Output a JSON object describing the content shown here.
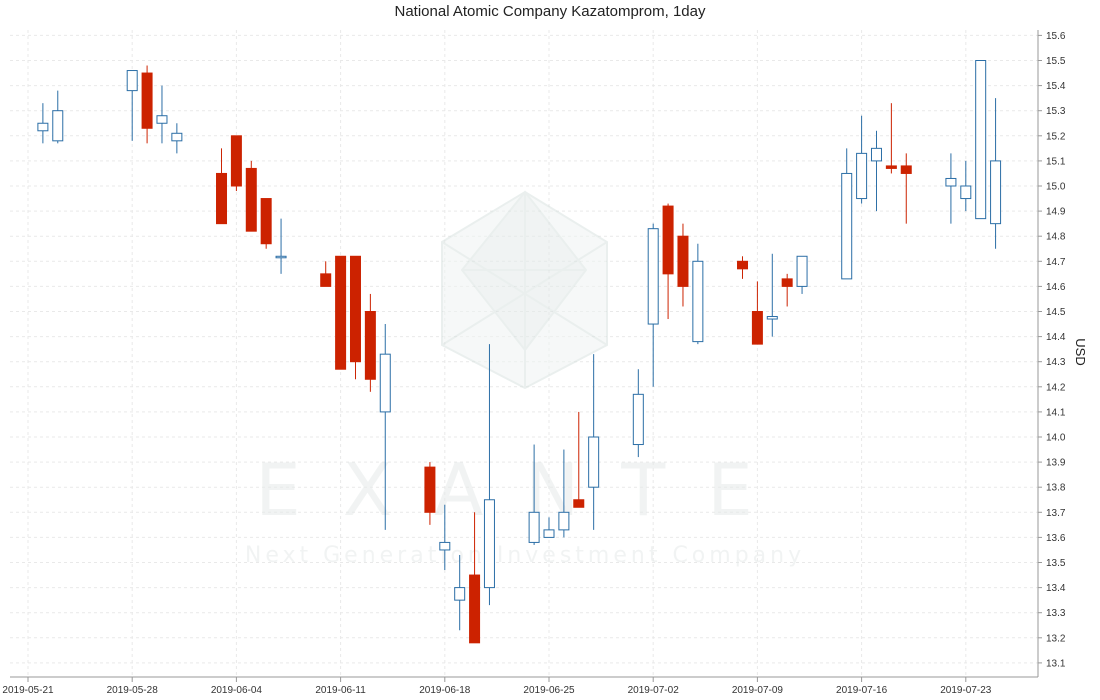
{
  "chart_data": {
    "type": "candlestick",
    "title": "National Atomic Company Kazatomprom, 1day",
    "ylabel": "USD",
    "xlabel": "",
    "ylim": [
      13.05,
      15.62
    ],
    "yticks": [
      "13.1",
      "13.2",
      "13.3",
      "13.4",
      "13.5",
      "13.6",
      "13.7",
      "13.8",
      "13.9",
      "14.0",
      "14.1",
      "14.2",
      "14.3",
      "14.4",
      "14.5",
      "14.6",
      "14.7",
      "14.8",
      "14.9",
      "15.0",
      "15.1",
      "15.2",
      "15.3",
      "15.4",
      "15.5",
      "15.6"
    ],
    "xticks": [
      "2019-05-21",
      "2019-05-28",
      "2019-06-04",
      "2019-06-11",
      "2019-06-18",
      "2019-06-25",
      "2019-07-02",
      "2019-07-09",
      "2019-07-16",
      "2019-07-23"
    ],
    "grid": true,
    "colors": {
      "up": "#2b6ea6",
      "down": "#cc2200",
      "grid": "#e9e9e9"
    },
    "watermark": {
      "logo": "pentagon-crystal-logo",
      "name": "EXANTE",
      "tagline": "Next Generation Investment Company"
    },
    "candles": [
      {
        "date": "2019-05-22",
        "open": 15.22,
        "high": 15.33,
        "low": 15.17,
        "close": 15.25
      },
      {
        "date": "2019-05-23",
        "open": 15.18,
        "high": 15.38,
        "low": 15.17,
        "close": 15.3
      },
      {
        "date": "2019-05-28",
        "open": 15.38,
        "high": 15.46,
        "low": 15.18,
        "close": 15.46
      },
      {
        "date": "2019-05-29",
        "open": 15.45,
        "high": 15.48,
        "low": 15.17,
        "close": 15.23
      },
      {
        "date": "2019-05-30",
        "open": 15.25,
        "high": 15.4,
        "low": 15.17,
        "close": 15.28
      },
      {
        "date": "2019-05-31",
        "open": 15.18,
        "high": 15.25,
        "low": 15.13,
        "close": 15.21
      },
      {
        "date": "2019-06-03",
        "open": 15.05,
        "high": 15.15,
        "low": 14.85,
        "close": 14.85
      },
      {
        "date": "2019-06-04",
        "open": 15.2,
        "high": 15.2,
        "low": 14.98,
        "close": 15.0
      },
      {
        "date": "2019-06-05",
        "open": 15.07,
        "high": 15.1,
        "low": 14.82,
        "close": 14.82
      },
      {
        "date": "2019-06-06",
        "open": 14.95,
        "high": 14.95,
        "low": 14.75,
        "close": 14.77
      },
      {
        "date": "2019-06-07",
        "open": 14.72,
        "high": 14.87,
        "low": 14.65,
        "close": 14.72
      },
      {
        "date": "2019-06-10",
        "open": 14.65,
        "high": 14.7,
        "low": 14.6,
        "close": 14.6
      },
      {
        "date": "2019-06-11",
        "open": 14.72,
        "high": 14.72,
        "low": 14.27,
        "close": 14.27
      },
      {
        "date": "2019-06-12",
        "open": 14.72,
        "high": 14.72,
        "low": 14.23,
        "close": 14.3
      },
      {
        "date": "2019-06-13",
        "open": 14.5,
        "high": 14.57,
        "low": 14.18,
        "close": 14.23
      },
      {
        "date": "2019-06-14",
        "open": 14.1,
        "high": 14.45,
        "low": 13.63,
        "close": 14.33
      },
      {
        "date": "2019-06-17",
        "open": 13.88,
        "high": 13.9,
        "low": 13.65,
        "close": 13.7
      },
      {
        "date": "2019-06-18",
        "open": 13.55,
        "high": 13.73,
        "low": 13.47,
        "close": 13.58
      },
      {
        "date": "2019-06-19",
        "open": 13.35,
        "high": 13.53,
        "low": 13.23,
        "close": 13.4
      },
      {
        "date": "2019-06-20",
        "open": 13.45,
        "high": 13.7,
        "low": 13.18,
        "close": 13.18
      },
      {
        "date": "2019-06-21",
        "open": 13.4,
        "high": 14.37,
        "low": 13.33,
        "close": 13.75
      },
      {
        "date": "2019-06-24",
        "open": 13.58,
        "high": 13.97,
        "low": 13.57,
        "close": 13.7
      },
      {
        "date": "2019-06-25",
        "open": 13.6,
        "high": 13.68,
        "low": 13.6,
        "close": 13.63
      },
      {
        "date": "2019-06-26",
        "open": 13.63,
        "high": 13.95,
        "low": 13.6,
        "close": 13.7
      },
      {
        "date": "2019-06-27",
        "open": 13.75,
        "high": 14.1,
        "low": 13.72,
        "close": 13.72
      },
      {
        "date": "2019-06-28",
        "open": 13.8,
        "high": 14.33,
        "low": 13.63,
        "close": 14.0
      },
      {
        "date": "2019-07-01",
        "open": 13.97,
        "high": 14.27,
        "low": 13.92,
        "close": 14.17
      },
      {
        "date": "2019-07-02",
        "open": 14.45,
        "high": 14.85,
        "low": 14.2,
        "close": 14.83
      },
      {
        "date": "2019-07-03",
        "open": 14.92,
        "high": 14.93,
        "low": 14.47,
        "close": 14.65
      },
      {
        "date": "2019-07-04",
        "open": 14.8,
        "high": 14.85,
        "low": 14.52,
        "close": 14.6
      },
      {
        "date": "2019-07-05",
        "open": 14.38,
        "high": 14.77,
        "low": 14.37,
        "close": 14.7
      },
      {
        "date": "2019-07-08",
        "open": 14.7,
        "high": 14.72,
        "low": 14.63,
        "close": 14.67
      },
      {
        "date": "2019-07-09",
        "open": 14.5,
        "high": 14.62,
        "low": 14.37,
        "close": 14.37
      },
      {
        "date": "2019-07-10",
        "open": 14.47,
        "high": 14.73,
        "low": 14.4,
        "close": 14.48
      },
      {
        "date": "2019-07-11",
        "open": 14.63,
        "high": 14.65,
        "low": 14.52,
        "close": 14.6
      },
      {
        "date": "2019-07-12",
        "open": 14.6,
        "high": 14.72,
        "low": 14.57,
        "close": 14.72
      },
      {
        "date": "2019-07-15",
        "open": 14.63,
        "high": 15.15,
        "low": 14.63,
        "close": 15.05
      },
      {
        "date": "2019-07-16",
        "open": 14.95,
        "high": 15.28,
        "low": 14.93,
        "close": 15.13
      },
      {
        "date": "2019-07-17",
        "open": 15.1,
        "high": 15.22,
        "low": 14.9,
        "close": 15.15
      },
      {
        "date": "2019-07-18",
        "open": 15.08,
        "high": 15.33,
        "low": 15.05,
        "close": 15.07
      },
      {
        "date": "2019-07-19",
        "open": 15.08,
        "high": 15.13,
        "low": 14.85,
        "close": 15.05
      },
      {
        "date": "2019-07-22",
        "open": 15.0,
        "high": 15.13,
        "low": 14.85,
        "close": 15.03
      },
      {
        "date": "2019-07-23",
        "open": 14.95,
        "high": 15.1,
        "low": 14.9,
        "close": 15.0
      },
      {
        "date": "2019-07-24",
        "open": 14.87,
        "high": 15.5,
        "low": 14.87,
        "close": 15.5
      },
      {
        "date": "2019-07-25",
        "open": 14.85,
        "high": 15.35,
        "low": 14.75,
        "close": 15.1
      }
    ]
  }
}
